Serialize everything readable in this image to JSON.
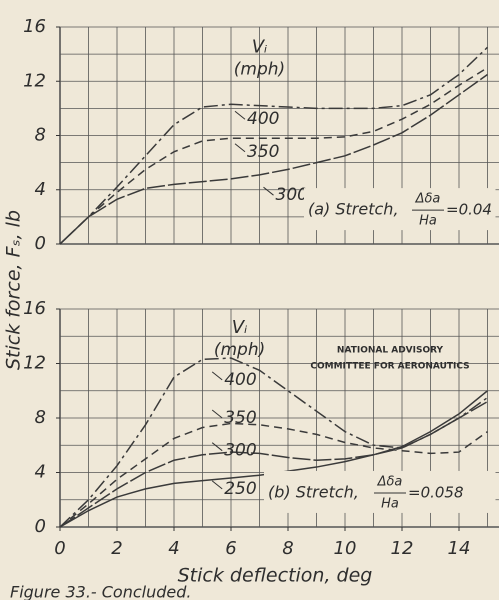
{
  "ylabel": "Stick force, Fₛ, lb",
  "caption": "Figure 33.- Concluded.",
  "chart_data": [
    {
      "type": "line",
      "annotation_header": "Vᵢ",
      "annotation_unit": "(mph)",
      "panel_text": {
        "prefix": "(a) Stretch,",
        "num": "Δδa",
        "den": "Ha",
        "suffix": "=0.04"
      },
      "x": [
        0,
        1,
        2,
        3,
        4,
        5,
        6,
        7,
        8,
        9,
        10,
        11,
        12,
        13,
        14,
        15
      ],
      "series": [
        {
          "name": "400",
          "color": "#3a3a3a",
          "style": "dashdot",
          "values": [
            0,
            2,
            4.2,
            6.5,
            8.8,
            10.1,
            10.3,
            10.2,
            10.1,
            10.0,
            10.0,
            10.0,
            10.2,
            11.0,
            12.5,
            14.5
          ]
        },
        {
          "name": "350",
          "color": "#3a3a3a",
          "style": "dash",
          "values": [
            0,
            2,
            3.8,
            5.5,
            6.8,
            7.6,
            7.8,
            7.8,
            7.8,
            7.8,
            7.9,
            8.3,
            9.2,
            10.3,
            11.7,
            13.0
          ]
        },
        {
          "name": "300",
          "color": "#3a3a3a",
          "style": "longdash",
          "values": [
            0,
            2,
            3.3,
            4.1,
            4.4,
            4.6,
            4.8,
            5.1,
            5.5,
            6.0,
            6.5,
            7.3,
            8.2,
            9.5,
            11.0,
            12.5
          ]
        }
      ],
      "xlim": [
        0,
        15
      ],
      "ylim": [
        0,
        16
      ],
      "yticks": [
        0,
        4,
        8,
        12,
        16
      ],
      "xgrid": [
        0,
        1,
        2,
        3,
        4,
        5,
        6,
        7,
        8,
        9,
        10,
        11,
        12,
        13,
        14,
        15
      ],
      "ygrid": [
        0,
        2,
        4,
        6,
        8,
        10,
        12,
        14,
        16
      ],
      "grid": true
    },
    {
      "type": "line",
      "annotation_header": "Vᵢ",
      "annotation_unit": "(mph)",
      "stamp": [
        "NATIONAL ADVISORY",
        "COMMITTEE FOR AERONAUTICS"
      ],
      "panel_text": {
        "prefix": "(b) Stretch,",
        "num": "Δδa",
        "den": "Ha",
        "suffix": "=0.058"
      },
      "xlabel": "Stick deflection, deg",
      "x": [
        0,
        1,
        2,
        3,
        4,
        5,
        6,
        7,
        8,
        9,
        10,
        11,
        12,
        13,
        14,
        15
      ],
      "series": [
        {
          "name": "400",
          "color": "#3a3a3a",
          "style": "dashdot",
          "values": [
            0,
            2,
            4.5,
            7.5,
            11,
            12.3,
            12.4,
            11.5,
            10,
            8.5,
            7,
            6,
            5.8,
            6.8,
            8,
            9.5
          ]
        },
        {
          "name": "350",
          "color": "#3a3a3a",
          "style": "dash",
          "values": [
            0,
            1.7,
            3.5,
            5,
            6.5,
            7.3,
            7.6,
            7.5,
            7.2,
            6.8,
            6.2,
            5.8,
            5.6,
            5.4,
            5.5,
            7
          ]
        },
        {
          "name": "300",
          "color": "#3a3a3a",
          "style": "longdash",
          "values": [
            0,
            1.4,
            2.8,
            4,
            4.9,
            5.3,
            5.5,
            5.4,
            5.1,
            4.9,
            5,
            5.3,
            5.8,
            6.8,
            8,
            9.2
          ]
        },
        {
          "name": "250",
          "color": "#3a3a3a",
          "style": "solid",
          "values": [
            0,
            1.2,
            2.2,
            2.8,
            3.2,
            3.4,
            3.6,
            3.8,
            4.1,
            4.4,
            4.8,
            5.3,
            5.9,
            7,
            8.3,
            10
          ]
        }
      ],
      "xlim": [
        0,
        15
      ],
      "ylim": [
        0,
        16
      ],
      "xticks": [
        0,
        2,
        4,
        6,
        8,
        10,
        12,
        14
      ],
      "yticks": [
        0,
        4,
        8,
        12,
        16
      ],
      "xgrid": [
        0,
        1,
        2,
        3,
        4,
        5,
        6,
        7,
        8,
        9,
        10,
        11,
        12,
        13,
        14,
        15
      ],
      "ygrid": [
        0,
        2,
        4,
        6,
        8,
        10,
        12,
        14,
        16
      ],
      "grid": true
    }
  ]
}
